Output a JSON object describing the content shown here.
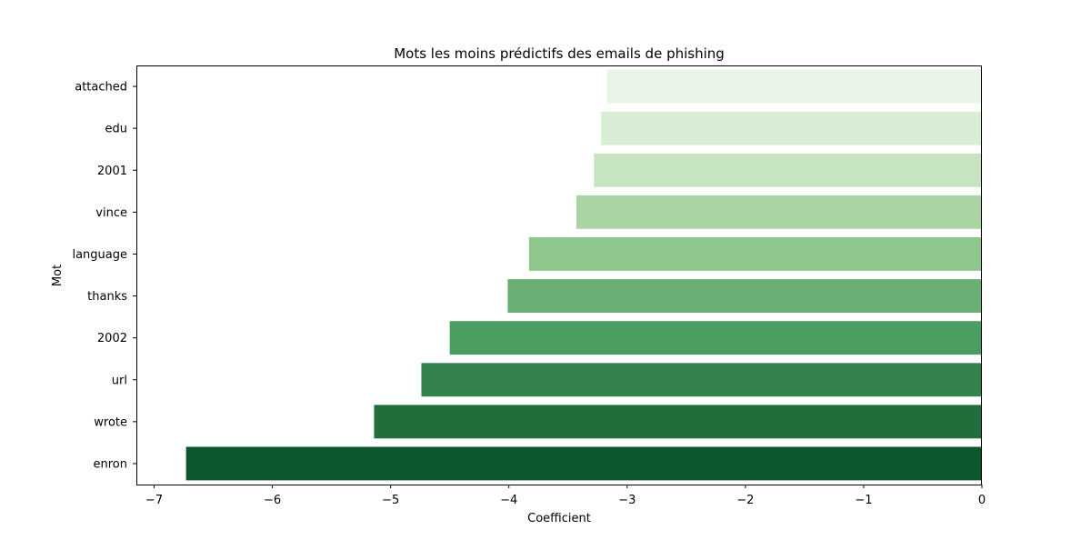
{
  "chart_data": {
    "type": "bar",
    "orientation": "horizontal",
    "title": "Mots les moins prédictifs des emails de phishing",
    "xlabel": "Coefficient",
    "ylabel": "Mot",
    "categories": [
      "attached",
      "edu",
      "2001",
      "vince",
      "language",
      "thanks",
      "2002",
      "url",
      "wrote",
      "enron"
    ],
    "values": [
      -3.17,
      -3.22,
      -3.28,
      -3.43,
      -3.83,
      -4.01,
      -4.5,
      -4.74,
      -5.14,
      -6.73
    ],
    "xlim": [
      -7.15,
      0
    ],
    "xticks": [
      -7,
      -6,
      -5,
      -4,
      -3,
      -2,
      -1,
      0
    ],
    "xtick_labels": [
      "−7",
      "−6",
      "−5",
      "−4",
      "−3",
      "−2",
      "−1",
      "0"
    ],
    "grid": false,
    "colors": [
      "#e9f5e6",
      "#d8edd4",
      "#c5e4bf",
      "#abd4a3",
      "#8ec68b",
      "#6aaf73",
      "#4b9e61",
      "#34834f",
      "#1f6e3b",
      "#0c572d"
    ]
  }
}
